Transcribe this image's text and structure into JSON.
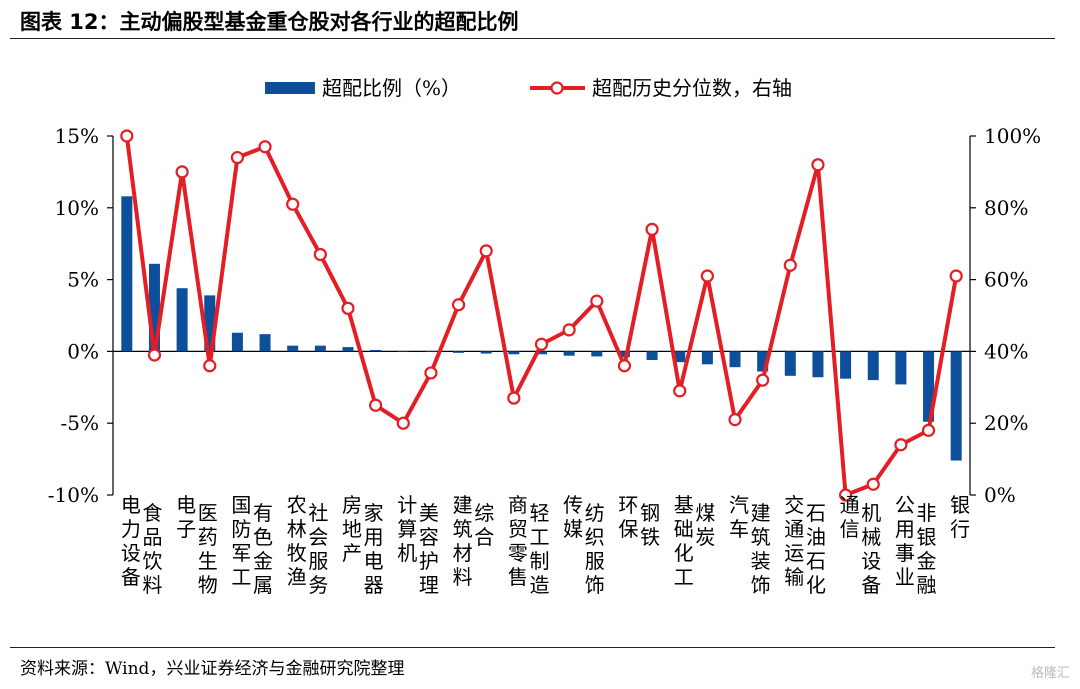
{
  "header": {
    "title": "图表 12：主动偏股型基金重仓股对各行业的超配比例"
  },
  "footer": {
    "source": "资料来源：Wind，兴业证券经济与金融研究院整理",
    "watermark": "格隆汇"
  },
  "chart_data": {
    "type": "bar",
    "legend": {
      "placement": "top-center",
      "bar_label": "超配比例（%）",
      "line_label": "超配历史分位数，右轴"
    },
    "colors": {
      "bar": "#0d4f9a",
      "line": "#e31e24",
      "marker_fill": "#ffffff"
    },
    "categories": [
      "电力设备",
      "食品饮料",
      "电子",
      "医药生物",
      "国防军工",
      "有色金属",
      "农林牧渔",
      "社会服务",
      "房地产",
      "家用电器",
      "计算机",
      "美容护理",
      "建筑材料",
      "综合",
      "商贸零售",
      "轻工制造",
      "传媒",
      "纺织服饰",
      "环保",
      "钢铁",
      "基础化工",
      "煤炭",
      "汽车",
      "建筑装饰",
      "交通运输",
      "石油石化",
      "通信",
      "机械设备",
      "公用事业",
      "非银金融",
      "银行"
    ],
    "series": [
      {
        "name": "超配比例（%）",
        "type": "bar",
        "axis": "left",
        "values": [
          10.8,
          6.1,
          4.4,
          3.9,
          1.3,
          1.2,
          0.4,
          0.4,
          0.3,
          0.1,
          0.0,
          0.0,
          -0.1,
          -0.15,
          -0.2,
          -0.2,
          -0.3,
          -0.35,
          -0.4,
          -0.6,
          -0.75,
          -0.9,
          -1.1,
          -1.4,
          -1.7,
          -1.8,
          -1.9,
          -2.0,
          -2.3,
          -4.9,
          -7.6
        ]
      },
      {
        "name": "超配历史分位数，右轴",
        "type": "line",
        "axis": "right",
        "values": [
          100,
          39,
          90,
          36,
          94,
          97,
          81,
          67,
          52,
          25,
          20,
          34,
          53,
          68,
          27,
          42,
          46,
          54,
          36,
          74,
          29,
          61,
          21,
          32,
          64,
          92,
          0,
          3,
          14,
          18,
          61
        ]
      }
    ],
    "y_left": {
      "min": -10,
      "max": 15,
      "ticks": [
        15,
        10,
        5,
        0,
        -5,
        -10
      ],
      "tick_labels": [
        "15%",
        "10%",
        "5%",
        "0%",
        "-5%",
        "-10%"
      ]
    },
    "y_right": {
      "min": 0,
      "max": 100,
      "ticks": [
        100,
        80,
        60,
        40,
        20,
        0
      ],
      "tick_labels": [
        "100%",
        "80%",
        "60%",
        "40%",
        "20%",
        "0%"
      ]
    },
    "grid": false
  }
}
